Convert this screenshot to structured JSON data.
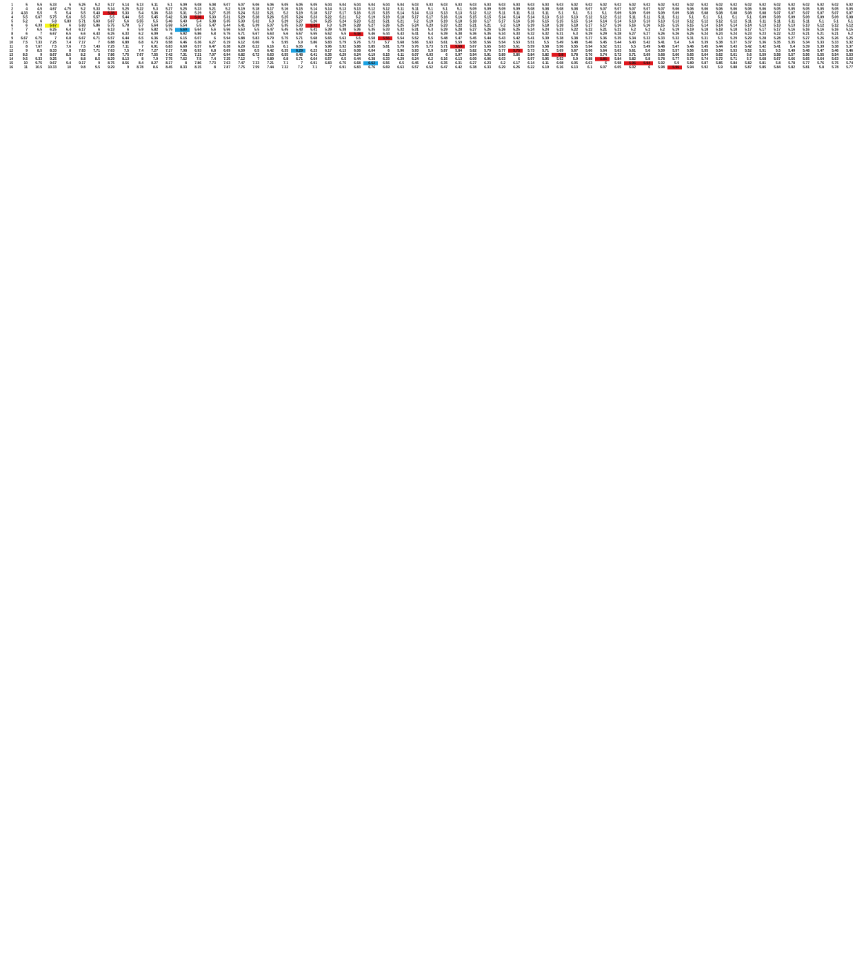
{
  "table": {
    "rows": [
      [
        1,
        5,
        5.5,
        5.33,
        5,
        5.25,
        5.2,
        5.17,
        5.14,
        5.13,
        5.11,
        5.1,
        5.09,
        5.08,
        5.08,
        5.07,
        5.07,
        5.06,
        5.06,
        5.05,
        5.05,
        5.05,
        5.04,
        5.04,
        5.04,
        5.04,
        5.04,
        5.04,
        5.03,
        5.03,
        5.03,
        5.03,
        5.03,
        5.03,
        5.03,
        5.03,
        5.03,
        5.03,
        5.03,
        5.02,
        5.02,
        5.02,
        5.02,
        5.02,
        5.02,
        5.02,
        5.02,
        5.02,
        5.02,
        5.02,
        5.02,
        5.02,
        5.02,
        5.02,
        5.02,
        5.02,
        5.02,
        5.02,
        5.02
      ],
      [
        2,
        4,
        4.5,
        4.67,
        4.75,
        5.2,
        5.33,
        5.14,
        5.25,
        5.22,
        5.3,
        5.27,
        5.25,
        5.23,
        5.21,
        5.2,
        5.19,
        5.18,
        5.17,
        5.16,
        5.15,
        5.14,
        5.14,
        5.13,
        5.13,
        5.12,
        5.12,
        5.11,
        5.11,
        5.1,
        5.1,
        5.1,
        5.09,
        5.09,
        5.09,
        5.09,
        5.08,
        5.08,
        5.08,
        5.08,
        5.07,
        5.07,
        5.07,
        5.07,
        5.07,
        5.07,
        5.06,
        5.06,
        5.06,
        5.06,
        5.06,
        5.06,
        5.06,
        5.05,
        5.05,
        5.05,
        5.05,
        5.05,
        5.05
      ],
      [
        3,
        4.33,
        5.5,
        5,
        5.4,
        5.5,
        5.43,
        {
          "text": "5.38",
          "fill": "#e0161c"
        },
        5.33,
        5.4,
        5.36,
        5.33,
        5.31,
        5.29,
        5.27,
        5.25,
        5.24,
        5.22,
        5.21,
        5.2,
        5.19,
        5.18,
        5.17,
        5.17,
        5.16,
        5.15,
        5.15,
        5.14,
        5.14,
        5.13,
        5.13,
        5.13,
        5.12,
        5.12,
        5.11,
        5.11,
        5.11,
        5.11,
        5.1,
        5.1,
        5.1,
        5.1,
        5.09,
        5.09,
        5.09,
        5.09,
        5.09,
        5.08,
        5.08,
        5.08,
        5.08,
        5.08,
        5.08,
        5.07,
        5.07,
        5.07,
        5.07,
        5.07,
        5.07
      ],
      [
        4,
        5.5,
        5.67,
        5.75,
        5.6,
        5.5,
        5.57,
        5.5,
        5.44,
        5.5,
        5.45,
        5.42,
        5.38,
        {
          "text": "5.36",
          "fill": "#e0161c"
        },
        5.33,
        5.31,
        5.29,
        5.28,
        5.26,
        5.25,
        5.24,
        5.23,
        5.22,
        5.21,
        5.2,
        5.19,
        5.19,
        5.18,
        5.17,
        5.17,
        5.16,
        5.16,
        5.15,
        5.15,
        5.14,
        5.14,
        5.14,
        5.13,
        5.13,
        5.13,
        5.12,
        5.12,
        5.12,
        5.11,
        5.11,
        5.11,
        5.11,
        5.1,
        5.1,
        5.1,
        5.1,
        5.1,
        5.09,
        5.09,
        5.09,
        5.09,
        5.09,
        5.09,
        5.08
      ],
      [
        5,
        5.2,
        6,
        5.8,
        5.83,
        5.71,
        5.63,
        5.67,
        5.6,
        5.55,
        5.5,
        5.46,
        5.43,
        5.4,
        5.38,
        5.35,
        5.33,
        5.32,
        5.3,
        5.29,
        5.27,
        5.26,
        5.25,
        5.24,
        5.23,
        5.22,
        5.21,
        5.21,
        5.2,
        5.19,
        5.19,
        5.18,
        5.18,
        5.17,
        5.17,
        5.16,
        5.16,
        5.15,
        5.15,
        5.15,
        5.14,
        5.14,
        5.14,
        5.13,
        5.13,
        5.13,
        5.13,
        5.12,
        5.12,
        5.12,
        5.12,
        5.11,
        5.11,
        5.11,
        5.11,
        5.11,
        5.1,
        5.1,
        5.1
      ],
      [
        6,
        6,
        6.33,
        {
          "text": "5.67",
          "fill": "#f5f518"
        },
        6,
        5.83,
        5.86,
        5.75,
        5.78,
        5.7,
        5.64,
        5.58,
        5.54,
        5.5,
        5.47,
        5.44,
        5.41,
        5.39,
        5.37,
        5.35,
        5.33,
        {
          "text": "5.32",
          "fill": "#e0161c"
        },
        5.3,
        5.29,
        5.28,
        5.27,
        5.26,
        5.25,
        5.24,
        5.23,
        5.23,
        5.22,
        5.21,
        5.21,
        5.2,
        5.19,
        5.19,
        5.18,
        5.18,
        5.18,
        5.17,
        5.17,
        5.16,
        5.16,
        5.16,
        5.15,
        5.15,
        5.15,
        5.14,
        5.14,
        5.14,
        5.14,
        5.13,
        5.13,
        5.13,
        5.13,
        5.12,
        5.12,
        5.12
      ],
      [
        7,
        7,
        6.5,
        6.25,
        6.4,
        6.17,
        6,
        6.13,
        6,
        5.9,
        5.82,
        5.75,
        {
          "text": "5.69",
          "fill": "#1ba1e2"
        },
        5.64,
        5.6,
        5.56,
        5.53,
        5.5,
        5.47,
        5.45,
        5.43,
        5.41,
        5.39,
        5.38,
        5.36,
        5.35,
        5.33,
        5.32,
        5.31,
        5.3,
        5.29,
        5.28,
        5.27,
        5.26,
        5.26,
        5.25,
        5.24,
        5.24,
        5.23,
        5.22,
        5.22,
        5.21,
        5.21,
        5.2,
        5.2,
        5.2,
        5.19,
        5.19,
        5.18,
        5.18,
        5.18,
        5.17,
        5.17,
        5.17,
        5.16,
        5.16,
        5.16,
        5.16,
        5.15
      ],
      [
        8,
        6,
        7,
        6.67,
        6.5,
        6.6,
        6.43,
        6.25,
        6.33,
        6.2,
        6.09,
        6,
        5.92,
        5.86,
        5.8,
        5.75,
        5.71,
        5.67,
        5.63,
        5.6,
        5.57,
        5.55,
        5.52,
        5.5,
        {
          "text": "5.48",
          "fill": "#e0161c"
        },
        5.46,
        5.44,
        5.43,
        5.41,
        5.4,
        5.39,
        5.38,
        5.36,
        5.35,
        5.34,
        5.33,
        5.32,
        5.32,
        5.31,
        5.3,
        5.29,
        5.29,
        5.28,
        5.27,
        5.27,
        5.26,
        5.26,
        5.25,
        5.24,
        5.24,
        5.24,
        5.23,
        5.23,
        5.22,
        5.22,
        5.21,
        5.21,
        5.21,
        5.2
      ],
      [
        9,
        6.67,
        6.75,
        7,
        6.8,
        6.67,
        6.71,
        6.57,
        6.44,
        6.5,
        6.36,
        6.25,
        6.15,
        6.07,
        6,
        5.94,
        5.88,
        5.83,
        5.79,
        5.75,
        5.71,
        5.68,
        5.65,
        5.63,
        5.6,
        5.58,
        {
          "text": "5.56",
          "fill": "#e0161c"
        },
        5.54,
        5.52,
        5.5,
        5.48,
        5.47,
        5.45,
        5.44,
        5.43,
        5.42,
        5.41,
        5.39,
        5.38,
        5.38,
        5.37,
        5.36,
        5.35,
        5.34,
        5.33,
        5.33,
        5.32,
        5.31,
        5.31,
        5.3,
        5.29,
        5.29,
        5.28,
        5.28,
        5.27,
        5.27,
        5.26,
        5.26,
        5.25
      ],
      [
        10,
        7.5,
        7.33,
        7.25,
        7.4,
        7.17,
        7,
        6.88,
        6.89,
        6.8,
        6.73,
        6.58,
        6.46,
        6.36,
        6.27,
        6.19,
        6.12,
        6.06,
        6,
        5.95,
        5.9,
        5.86,
        5.83,
        5.79,
        5.76,
        5.73,
        5.7,
        5.68,
        5.66,
        5.63,
        5.61,
        5.59,
        5.58,
        5.56,
        5.54,
        5.53,
        5.51,
        5.5,
        5.49,
        5.48,
        5.46,
        5.45,
        5.44,
        5.43,
        5.42,
        5.41,
        5.4,
        5.4,
        5.39,
        5.38,
        5.37,
        5.37,
        5.36,
        5.35,
        5.35,
        5.34,
        5.33,
        5.33,
        5.32
      ],
      [
        11,
        8,
        7.67,
        7.5,
        7.6,
        7.5,
        7.43,
        7.25,
        7.11,
        7,
        6.91,
        6.83,
        6.69,
        6.57,
        6.47,
        6.38,
        6.29,
        6.22,
        6.16,
        6.1,
        6.05,
        6,
        5.96,
        5.92,
        5.88,
        5.85,
        5.81,
        5.79,
        5.76,
        5.73,
        5.71,
        {
          "text": "5.69",
          "fill": "#e0161c"
        },
        5.67,
        5.65,
        5.63,
        5.61,
        5.59,
        5.58,
        5.56,
        5.55,
        5.54,
        5.52,
        5.51,
        5.5,
        5.49,
        5.48,
        5.47,
        5.46,
        5.45,
        5.44,
        5.43,
        5.42,
        5.42,
        5.41,
        5.4,
        5.39,
        5.39,
        5.38,
        5.37
      ],
      [
        12,
        9,
        8.5,
        8.33,
        8,
        7.83,
        7.71,
        7.63,
        7.5,
        7.4,
        7.27,
        7.17,
        7.08,
        6.93,
        6.8,
        6.69,
        6.59,
        6.5,
        6.42,
        6.35,
        {
          "text": "6.29",
          "fill": "#1ba1e2"
        },
        6.23,
        6.17,
        6.13,
        6.08,
        6.04,
        6,
        5.96,
        5.93,
        5.9,
        5.87,
        5.84,
        5.82,
        5.79,
        5.77,
        {
          "text": "5.75",
          "fill": "#e0161c"
        },
        5.73,
        5.71,
        5.69,
        5.67,
        5.66,
        5.64,
        5.63,
        5.61,
        5.6,
        5.59,
        5.57,
        5.56,
        5.55,
        5.54,
        5.53,
        5.52,
        5.51,
        5.5,
        5.49,
        5.48,
        5.47,
        5.46,
        5.46
      ],
      [
        13,
        8.5,
        9,
        8.67,
        8.5,
        8.2,
        8,
        7.86,
        7.75,
        7.67,
        7.55,
        7.42,
        7.31,
        7.21,
        7.07,
        6.94,
        6.82,
        6.72,
        6.63,
        6.55,
        6.48,
        6.41,
        6.35,
        6.29,
        6.24,
        6.19,
        6.15,
        6.11,
        6.07,
        6.03,
        6,
        5.97,
        5.94,
        5.91,
        5.89,
        5.86,
        5.84,
        5.82,
        {
          "text": "5.8",
          "fill": "#e0161c"
        },
        5.78,
        5.76,
        5.74,
        5.72,
        5.71,
        5.69,
        5.68,
        5.66,
        5.65,
        5.64,
        5.62,
        5.61,
        5.6,
        5.59,
        5.58,
        5.57,
        5.56,
        5.55,
        5.54,
        5.53
      ],
      [
        14,
        9.5,
        9.33,
        9.25,
        9,
        8.8,
        8.5,
        8.29,
        8.13,
        8,
        7.9,
        7.75,
        7.62,
        7.5,
        7.4,
        7.25,
        7.12,
        7,
        6.89,
        6.8,
        6.71,
        6.64,
        6.57,
        6.5,
        6.44,
        6.38,
        6.33,
        6.29,
        6.24,
        6.2,
        6.16,
        6.13,
        6.09,
        6.06,
        6.03,
        6,
        5.97,
        5.95,
        5.92,
        5.9,
        5.88,
        {
          "text": "5.86",
          "fill": "#e0161c"
        },
        5.84,
        5.82,
        5.8,
        5.78,
        5.77,
        5.75,
        5.74,
        5.72,
        5.71,
        5.7,
        5.68,
        5.67,
        5.66,
        5.65,
        5.64,
        5.63,
        5.62
      ],
      [
        15,
        10,
        9.75,
        9.67,
        9.4,
        9.17,
        9,
        8.75,
        8.56,
        8.4,
        8.27,
        8.17,
        8,
        7.86,
        7.73,
        7.63,
        7.47,
        7.33,
        7.21,
        7.1,
        7,
        6.91,
        6.83,
        6.75,
        6.68,
        {
          "text": "6.62",
          "fill": "#1ba1e2"
        },
        6.56,
        6.5,
        6.45,
        6.4,
        6.35,
        6.31,
        6.27,
        6.23,
        6.2,
        6.17,
        6.14,
        6.11,
        6.08,
        6.05,
        6.03,
        6,
        5.98,
        {
          "text": "5.96",
          "fill": "#e0161c"
        },
        {
          "text": "5.94",
          "fill": "#e0161c"
        },
        5.92,
        5.9,
        5.89,
        5.87,
        5.85,
        5.84,
        5.82,
        5.81,
        5.8,
        5.78,
        5.77,
        5.76,
        5.75,
        5.74
      ],
      [
        16,
        11,
        10.5,
        10.33,
        10,
        9.8,
        9.5,
        9.29,
        9,
        8.78,
        8.6,
        8.45,
        8.33,
        8.15,
        8,
        7.87,
        7.75,
        7.59,
        7.44,
        7.32,
        7.2,
        7.1,
        7,
        6.91,
        6.83,
        6.76,
        6.69,
        6.63,
        6.57,
        6.52,
        6.47,
        6.42,
        6.38,
        6.33,
        6.29,
        6.26,
        6.22,
        6.19,
        6.16,
        6.13,
        6.1,
        6.07,
        6.05,
        6.02,
        6,
        5.98,
        {
          "text": "5.96",
          "fill": "#e0161c"
        },
        5.94,
        5.92,
        5.9,
        5.88,
        5.87,
        5.85,
        5.84,
        5.82,
        5.81,
        5.8,
        5.78,
        5.77
      ]
    ]
  }
}
